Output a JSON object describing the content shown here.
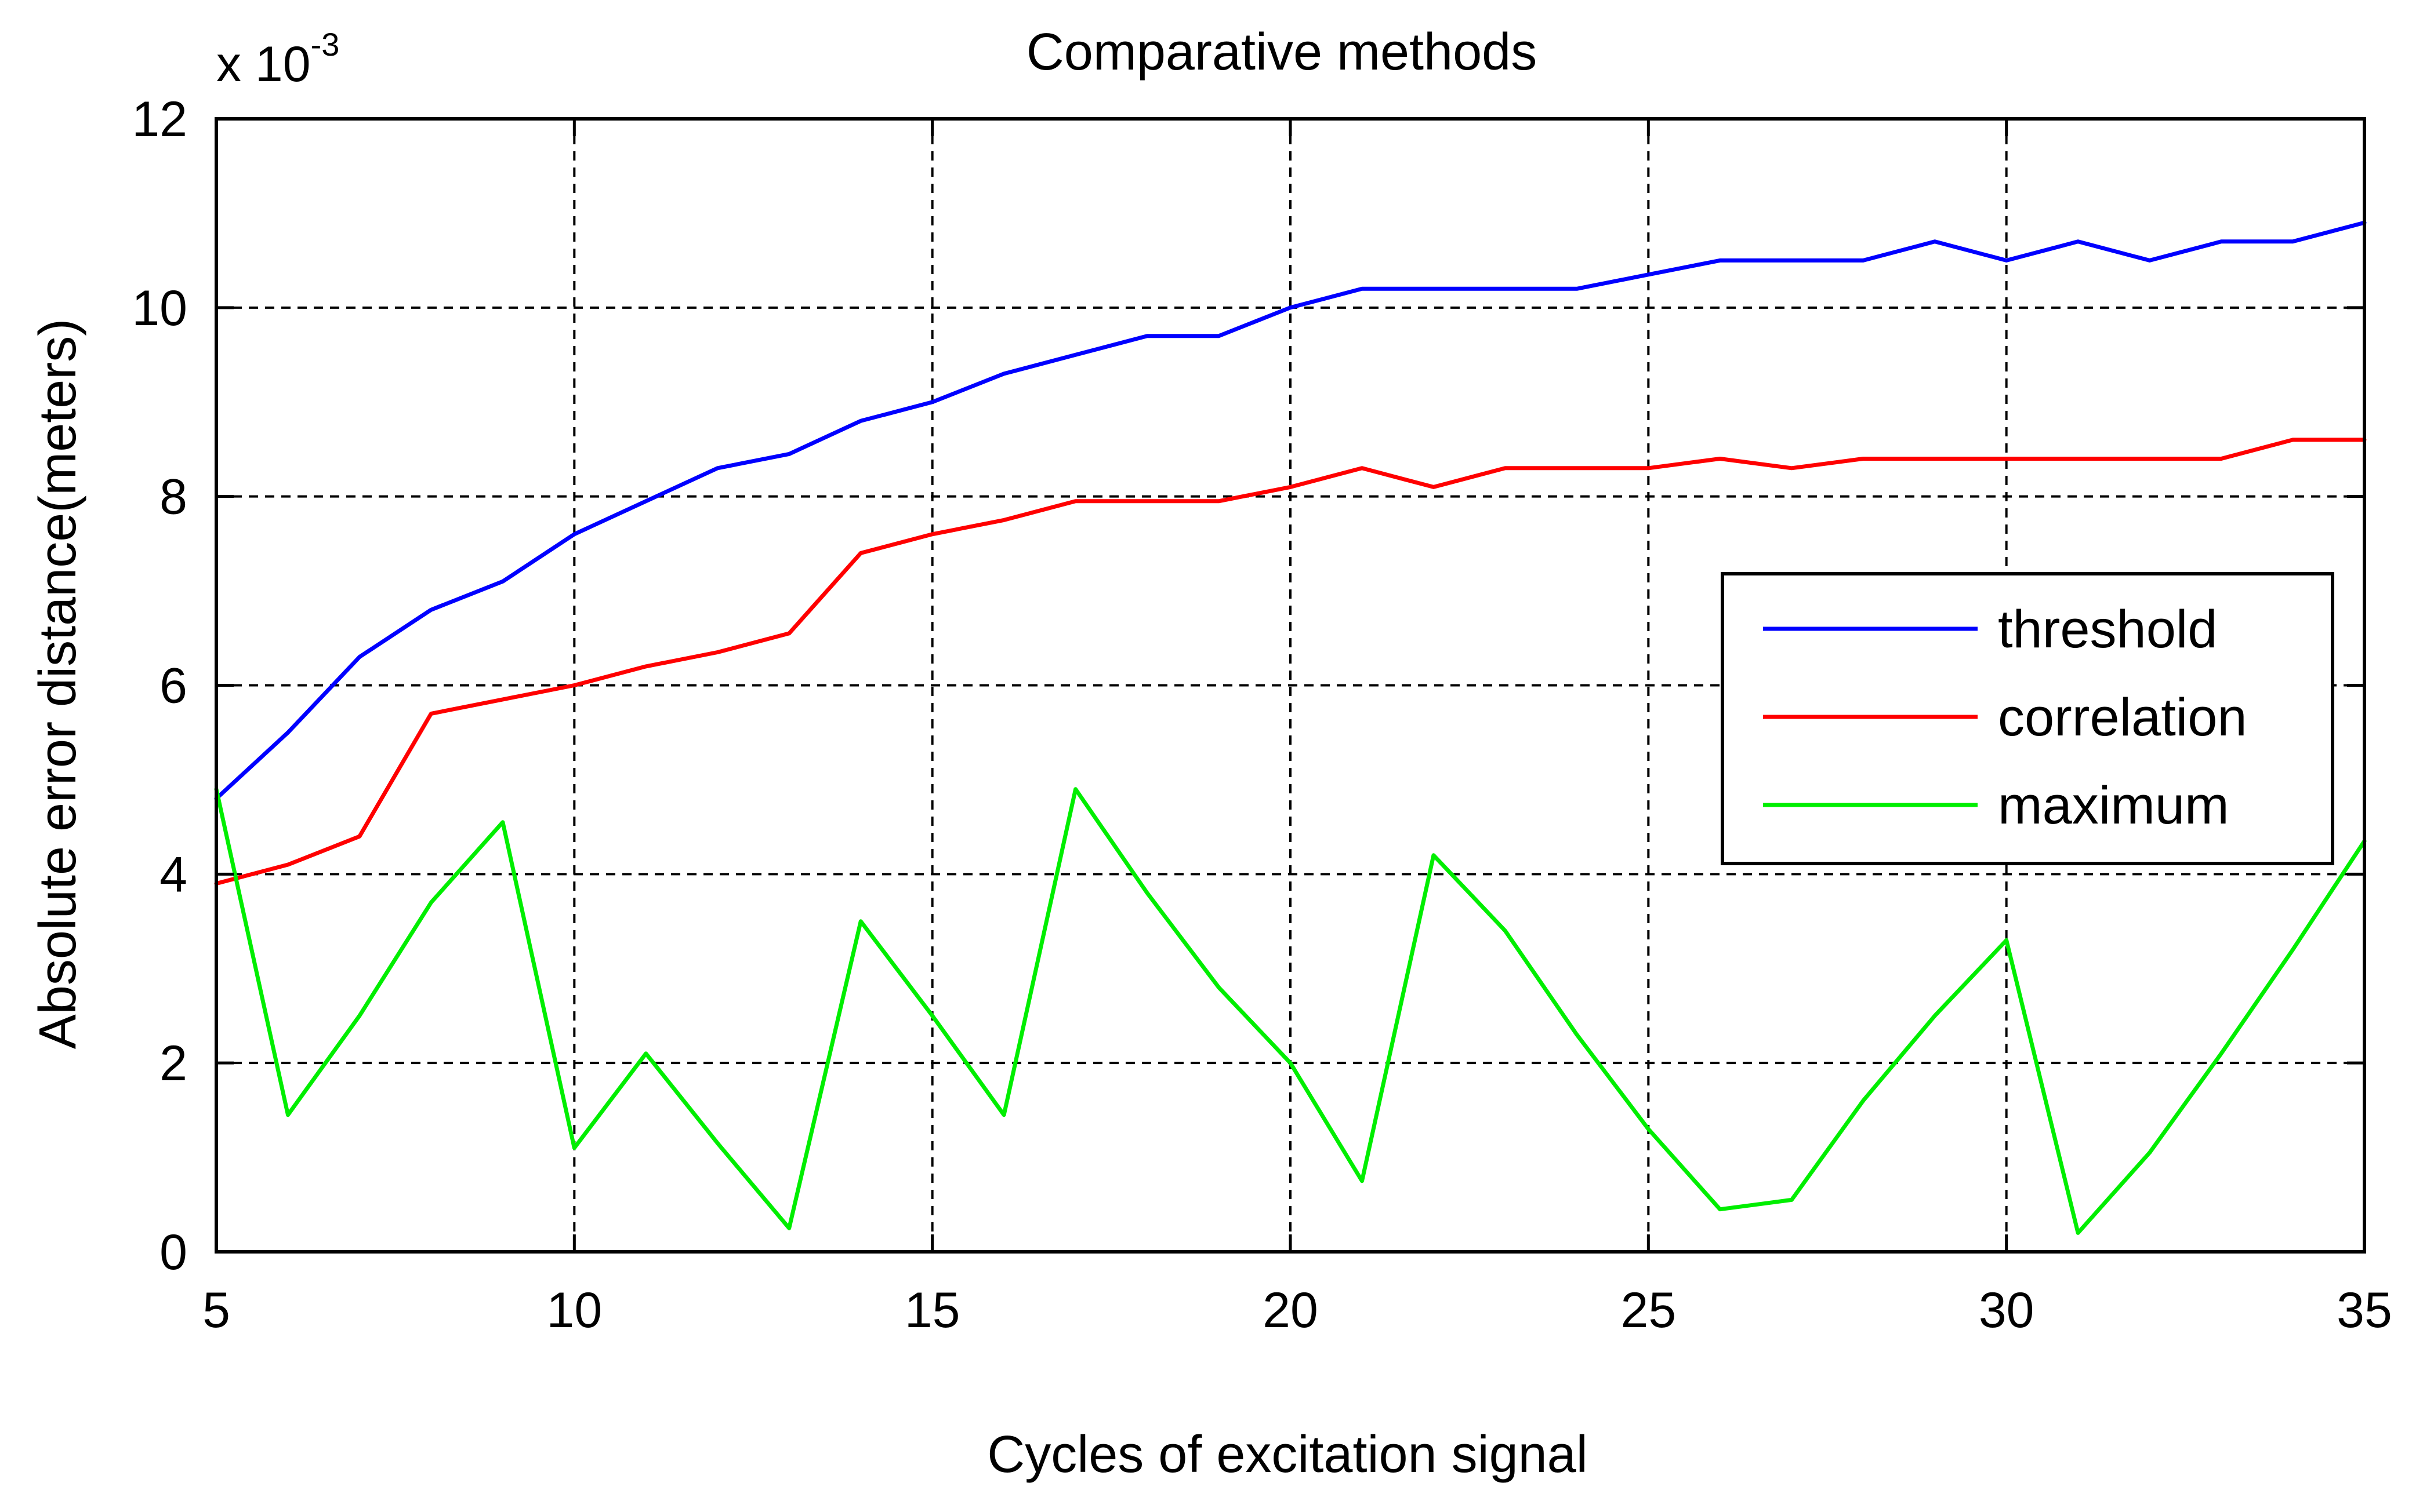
{
  "chart_data": {
    "type": "line",
    "title": "Comparative methods",
    "xlabel": "Cycles of excitation signal",
    "ylabel": "Absolute error distance(meters)",
    "y_exponent_label": "x 10",
    "y_exponent_power": "-3",
    "xlim": [
      5,
      35
    ],
    "ylim": [
      0,
      12
    ],
    "xticks": [
      5,
      10,
      15,
      20,
      25,
      30,
      35
    ],
    "yticks": [
      0,
      2,
      4,
      6,
      8,
      10,
      12
    ],
    "grid": true,
    "legend_position": "right",
    "x": [
      5,
      6,
      7,
      8,
      9,
      10,
      11,
      12,
      13,
      14,
      15,
      16,
      17,
      18,
      19,
      20,
      21,
      22,
      23,
      24,
      25,
      26,
      27,
      28,
      29,
      30,
      31,
      32,
      33,
      34,
      35
    ],
    "series": [
      {
        "name": "threshold",
        "color": "#0000ff",
        "values": [
          4.8,
          5.5,
          6.3,
          6.8,
          7.1,
          7.6,
          7.95,
          8.3,
          8.45,
          8.8,
          9.0,
          9.3,
          9.5,
          9.7,
          9.7,
          10.0,
          10.2,
          10.2,
          10.2,
          10.2,
          10.35,
          10.5,
          10.5,
          10.5,
          10.7,
          10.5,
          10.7,
          10.5,
          10.7,
          10.7,
          10.9
        ]
      },
      {
        "name": "correlation",
        "color": "#ff0000",
        "values": [
          3.9,
          4.1,
          4.4,
          5.7,
          5.85,
          6.0,
          6.2,
          6.35,
          6.55,
          7.4,
          7.6,
          7.75,
          7.95,
          7.95,
          7.95,
          8.1,
          8.3,
          8.1,
          8.3,
          8.3,
          8.3,
          8.4,
          8.3,
          8.4,
          8.4,
          8.4,
          8.4,
          8.4,
          8.4,
          8.6,
          8.6
        ]
      },
      {
        "name": "maximum",
        "color": "#00ee00",
        "values": [
          4.9,
          1.45,
          2.5,
          3.7,
          4.55,
          1.1,
          2.1,
          1.15,
          0.25,
          3.5,
          2.5,
          1.45,
          4.9,
          3.8,
          2.8,
          2.0,
          0.75,
          4.2,
          3.4,
          2.3,
          1.3,
          0.45,
          0.55,
          1.6,
          2.5,
          3.3,
          0.2,
          1.05,
          2.1,
          3.2,
          4.35
        ]
      }
    ]
  }
}
